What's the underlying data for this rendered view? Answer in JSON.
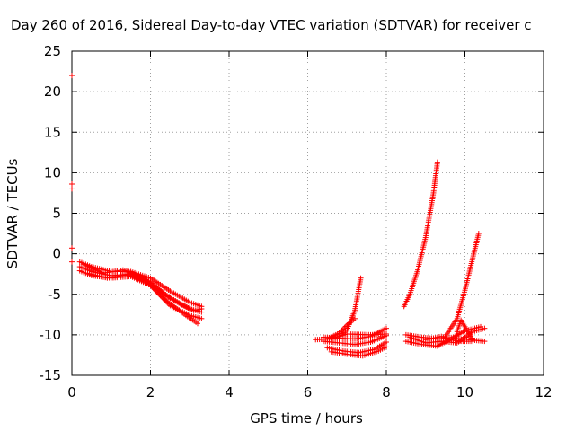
{
  "chart_data": {
    "type": "scatter",
    "title": "Day 260 of 2016, Sidereal Day-to-day VTEC variation (SDTVAR) for receiver c",
    "xlabel": "GPS time / hours",
    "ylabel": "SDTVAR / TECUs",
    "xlim": [
      0,
      12
    ],
    "ylim": [
      -15,
      25
    ],
    "xticks": [
      0,
      2,
      4,
      6,
      8,
      10,
      12
    ],
    "yticks": [
      -15,
      -10,
      -5,
      0,
      5,
      10,
      15,
      20,
      25
    ],
    "grid": true,
    "marker": "plus",
    "series_color": "#ff0000",
    "isolated_points": [
      {
        "x": 0.0,
        "y": 22.0
      },
      {
        "x": 0.0,
        "y": 8.6
      },
      {
        "x": 0.0,
        "y": 8.0
      },
      {
        "x": 0.0,
        "y": 0.7
      },
      {
        "x": 0.0,
        "y": -1.0
      }
    ],
    "tracks": [
      [
        [
          0.2,
          -1.0
        ],
        [
          0.5,
          -1.6
        ],
        [
          1.0,
          -2.2
        ],
        [
          1.5,
          -2.2
        ],
        [
          2.0,
          -3.0
        ],
        [
          2.5,
          -4.6
        ],
        [
          3.0,
          -6.0
        ],
        [
          3.3,
          -6.5
        ]
      ],
      [
        [
          0.2,
          -1.6
        ],
        [
          0.5,
          -2.2
        ],
        [
          1.0,
          -2.7
        ],
        [
          1.5,
          -2.5
        ],
        [
          2.0,
          -3.5
        ],
        [
          2.5,
          -5.5
        ],
        [
          3.0,
          -6.8
        ],
        [
          3.3,
          -7.2
        ]
      ],
      [
        [
          0.2,
          -2.1
        ],
        [
          0.5,
          -2.7
        ],
        [
          1.0,
          -3.0
        ],
        [
          1.5,
          -2.8
        ],
        [
          2.0,
          -3.9
        ],
        [
          2.5,
          -6.4
        ],
        [
          3.0,
          -7.6
        ],
        [
          3.3,
          -8.0
        ]
      ],
      [
        [
          0.3,
          -1.3
        ],
        [
          0.8,
          -2.4
        ],
        [
          1.3,
          -2.0
        ],
        [
          1.8,
          -2.9
        ],
        [
          2.3,
          -4.8
        ],
        [
          2.8,
          -6.3
        ],
        [
          3.1,
          -7.0
        ],
        [
          3.3,
          -6.8
        ]
      ],
      [
        [
          0.4,
          -2.4
        ],
        [
          0.9,
          -3.0
        ],
        [
          1.4,
          -2.6
        ],
        [
          1.9,
          -3.3
        ],
        [
          2.4,
          -5.8
        ],
        [
          2.9,
          -7.6
        ],
        [
          3.2,
          -8.6
        ]
      ],
      [
        [
          6.4,
          -10.3
        ],
        [
          6.8,
          -10.4
        ],
        [
          7.2,
          -10.5
        ],
        [
          7.6,
          -10.2
        ],
        [
          8.0,
          -9.2
        ]
      ],
      [
        [
          6.4,
          -10.8
        ],
        [
          6.8,
          -11.0
        ],
        [
          7.2,
          -11.2
        ],
        [
          7.6,
          -10.9
        ],
        [
          8.0,
          -10.1
        ]
      ],
      [
        [
          6.5,
          -11.6
        ],
        [
          6.9,
          -12.0
        ],
        [
          7.3,
          -12.2
        ],
        [
          7.7,
          -11.8
        ],
        [
          8.0,
          -10.9
        ]
      ],
      [
        [
          6.6,
          -12.1
        ],
        [
          7.0,
          -12.4
        ],
        [
          7.4,
          -12.6
        ],
        [
          7.8,
          -12.0
        ],
        [
          8.0,
          -11.5
        ]
      ],
      [
        [
          6.8,
          -10.2
        ],
        [
          7.0,
          -9.4
        ],
        [
          7.2,
          -7.0
        ],
        [
          7.35,
          -3.0
        ]
      ],
      [
        [
          6.5,
          -10.5
        ],
        [
          6.8,
          -9.8
        ],
        [
          7.0,
          -8.8
        ],
        [
          7.2,
          -8.0
        ]
      ],
      [
        [
          6.2,
          -10.6
        ],
        [
          6.6,
          -10.5
        ],
        [
          7.0,
          -9.9
        ],
        [
          7.6,
          -10.0
        ],
        [
          8.0,
          -9.9
        ]
      ],
      [
        [
          8.45,
          -6.5
        ],
        [
          8.6,
          -5.0
        ],
        [
          8.8,
          -2.0
        ],
        [
          9.0,
          2.0
        ],
        [
          9.2,
          7.5
        ],
        [
          9.3,
          11.3
        ]
      ],
      [
        [
          8.5,
          -10.0
        ],
        [
          8.9,
          -10.3
        ],
        [
          9.3,
          -10.5
        ],
        [
          9.7,
          -10.3
        ],
        [
          10.0,
          -9.5
        ],
        [
          10.4,
          -9.0
        ]
      ],
      [
        [
          8.5,
          -10.8
        ],
        [
          8.9,
          -11.2
        ],
        [
          9.3,
          -11.4
        ],
        [
          9.7,
          -10.4
        ],
        [
          10.1,
          -10.6
        ],
        [
          10.5,
          -10.8
        ]
      ],
      [
        [
          8.6,
          -10.3
        ],
        [
          9.0,
          -11.0
        ],
        [
          9.4,
          -10.8
        ],
        [
          9.8,
          -11.0
        ],
        [
          10.2,
          -9.6
        ],
        [
          10.5,
          -9.2
        ]
      ],
      [
        [
          9.5,
          -10.2
        ],
        [
          9.8,
          -8.0
        ],
        [
          10.0,
          -4.5
        ],
        [
          10.2,
          -0.5
        ],
        [
          10.35,
          2.5
        ]
      ],
      [
        [
          9.8,
          -9.6
        ],
        [
          9.9,
          -8.2
        ],
        [
          10.2,
          -10.6
        ]
      ],
      [
        [
          9.0,
          -10.6
        ],
        [
          9.4,
          -10.2
        ],
        [
          9.8,
          -10.8
        ],
        [
          10.2,
          -10.8
        ]
      ]
    ]
  }
}
